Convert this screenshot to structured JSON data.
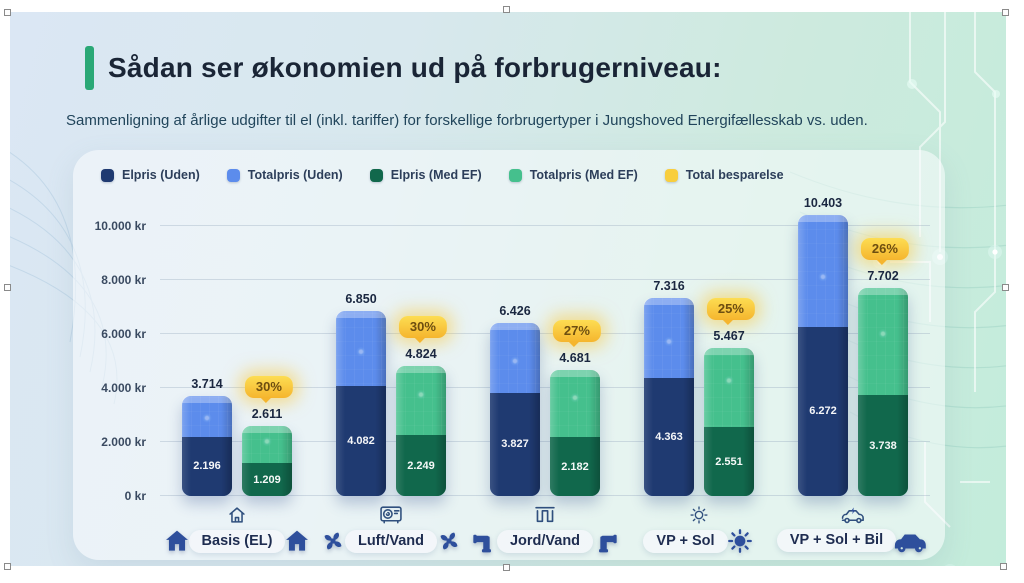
{
  "header": {
    "title": "Sådan ser økonomien ud på forbrugerniveau:",
    "subtitle": "Sammenligning af årlige udgifter til el (inkl. tariffer) for forskellige forbrugertyper i Jungshoved Energifællesskab vs. uden."
  },
  "legend": [
    {
      "label": "Elpris (Uden)",
      "color": "#1f3a71"
    },
    {
      "label": "Totalpris (Uden)",
      "color": "#5c8cec"
    },
    {
      "label": "Elpris (Med EF)",
      "color": "#11684c"
    },
    {
      "label": "Totalpris (Med EF)",
      "color": "#45c08d"
    },
    {
      "label": "Total besparelse",
      "color": "#f8ce3e"
    }
  ],
  "chart_data": {
    "type": "bar",
    "title": "Sådan ser økonomien ud på forbrugerniveau:",
    "ylabel": "kr",
    "ylim": [
      0,
      10000
    ],
    "grid": true,
    "legend_position": "top",
    "y_ticks": [
      "10.000 kr",
      "8.000 kr",
      "6.000 kr",
      "4.000 kr",
      "2.000 kr",
      "0 kr"
    ],
    "series_note": "Each group: stacked look — Totalpris is full bar height, Elpris is the dark lower segment",
    "groups": [
      {
        "category": "Basis (EL)",
        "icon_top": "house-outline-icon",
        "icon_left": "house-icon",
        "icon_right": "house-icon",
        "uden": {
          "total": 3714,
          "total_label": "3.714",
          "elpris": 2196,
          "elpris_label": "2.196"
        },
        "med_ef": {
          "total": 2611,
          "total_label": "2.611",
          "elpris": 1209,
          "elpris_label": "1.209"
        },
        "besparelse": "30%"
      },
      {
        "category": "Luft/Vand",
        "icon_top": "heatpump-outline-icon",
        "icon_left": "fan-icon",
        "icon_right": "fan-icon",
        "uden": {
          "total": 6850,
          "total_label": "6.850",
          "elpris": 4082,
          "elpris_label": "4.082"
        },
        "med_ef": {
          "total": 4824,
          "total_label": "4.824",
          "elpris": 2249,
          "elpris_label": "2.249"
        },
        "besparelse": "30%"
      },
      {
        "category": "Jord/Vand",
        "icon_top": "coil-outline-icon",
        "icon_left": "pipe-icon",
        "icon_right": "pipe-icon",
        "uden": {
          "total": 6426,
          "total_label": "6.426",
          "elpris": 3827,
          "elpris_label": "3.827"
        },
        "med_ef": {
          "total": 4681,
          "total_label": "4.681",
          "elpris": 2182,
          "elpris_label": "2.182"
        },
        "besparelse": "27%"
      },
      {
        "category": "VP + Sol",
        "icon_top": "sun-outline-icon",
        "icon_left": null,
        "icon_right": "sun-icon",
        "uden": {
          "total": 7316,
          "total_label": "7.316",
          "elpris": 4363,
          "elpris_label": "4.363"
        },
        "med_ef": {
          "total": 5467,
          "total_label": "5.467",
          "elpris": 2551,
          "elpris_label": "2.551"
        },
        "besparelse": "25%"
      },
      {
        "category": "VP + Sol + Bil",
        "icon_top": "ev-car-outline-icon",
        "icon_left": null,
        "icon_right": "car-icon",
        "uden": {
          "total": 10403,
          "total_label": "10.403",
          "elpris": 6272,
          "elpris_label": "6.272"
        },
        "med_ef": {
          "total": 7702,
          "total_label": "7.702",
          "elpris": 3738,
          "elpris_label": "3.738"
        },
        "besparelse": "26%"
      }
    ]
  },
  "colors": {
    "accent_green": "#2aa876",
    "title_text": "#1a2536",
    "subtitle_text": "#21455b",
    "elpris_uden": "#1f3a71",
    "totalpris_uden": "#5c8cec",
    "elpris_med_ef": "#11684c",
    "totalpris_med_ef": "#45c08d",
    "besparelse_yellow": "#f8ce3e",
    "icon_navy": "#2e4f9c"
  }
}
